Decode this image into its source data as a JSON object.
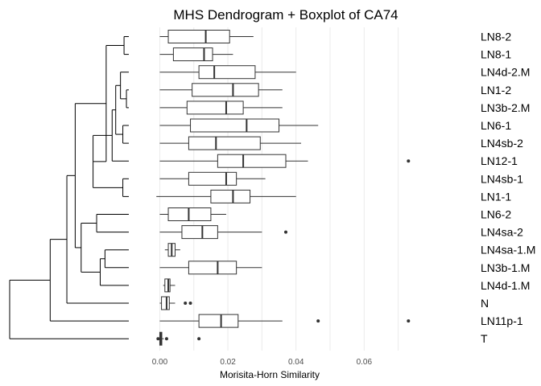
{
  "chart_data": {
    "type": "boxplot",
    "title": "MHS Dendrogram + Boxplot of CA74",
    "xlabel": "Morisita-Horn Similarity",
    "xlim": [
      -0.002,
      0.076
    ],
    "xticks": [
      0.0,
      0.02,
      0.04,
      0.06
    ],
    "xtick_labels": [
      "0.00",
      "0.02",
      "0.04",
      "0.06"
    ],
    "grid": true,
    "rows": [
      {
        "label": "LN8-2",
        "min": 0.0,
        "q1": 0.0025,
        "median": 0.0135,
        "q3": 0.0205,
        "max": 0.0275,
        "outliers": []
      },
      {
        "label": "LN8-1",
        "min": 0.0,
        "q1": 0.004,
        "median": 0.013,
        "q3": 0.0155,
        "max": 0.0215,
        "outliers": []
      },
      {
        "label": "LN4d-2.M",
        "min": 0.0,
        "q1": 0.0115,
        "median": 0.016,
        "q3": 0.028,
        "max": 0.04,
        "outliers": []
      },
      {
        "label": "LN1-2",
        "min": 0.0,
        "q1": 0.0095,
        "median": 0.0215,
        "q3": 0.029,
        "max": 0.036,
        "outliers": []
      },
      {
        "label": "LN3b-2.M",
        "min": 0.0,
        "q1": 0.008,
        "median": 0.0195,
        "q3": 0.0245,
        "max": 0.036,
        "outliers": []
      },
      {
        "label": "LN6-1",
        "min": 0.0,
        "q1": 0.009,
        "median": 0.0255,
        "q3": 0.035,
        "max": 0.0465,
        "outliers": []
      },
      {
        "label": "LN4sb-2",
        "min": 0.0,
        "q1": 0.0085,
        "median": 0.0165,
        "q3": 0.0295,
        "max": 0.0415,
        "outliers": []
      },
      {
        "label": "LN12-1",
        "min": 0.0,
        "q1": 0.017,
        "median": 0.0245,
        "q3": 0.037,
        "max": 0.0435,
        "outliers": [
          0.073
        ]
      },
      {
        "label": "LN4sb-1",
        "min": 0.0,
        "q1": 0.0085,
        "median": 0.0195,
        "q3": 0.0225,
        "max": 0.031,
        "outliers": []
      },
      {
        "label": "LN1-1",
        "min": -0.001,
        "q1": 0.015,
        "median": 0.0215,
        "q3": 0.0265,
        "max": 0.04,
        "outliers": []
      },
      {
        "label": "LN6-2",
        "min": 0.0,
        "q1": 0.0025,
        "median": 0.0085,
        "q3": 0.015,
        "max": 0.0195,
        "outliers": []
      },
      {
        "label": "LN4sa-2",
        "min": 0.0,
        "q1": 0.0065,
        "median": 0.0125,
        "q3": 0.017,
        "max": 0.03,
        "outliers": [
          0.037
        ]
      },
      {
        "label": "LN4sa-1.M",
        "min": 0.0015,
        "q1": 0.0025,
        "median": 0.0035,
        "q3": 0.0045,
        "max": 0.006,
        "outliers": []
      },
      {
        "label": "LN3b-1.M",
        "min": 0.0,
        "q1": 0.0085,
        "median": 0.017,
        "q3": 0.0225,
        "max": 0.03,
        "outliers": []
      },
      {
        "label": "LN4d-1.M",
        "min": 0.001,
        "q1": 0.0015,
        "median": 0.0025,
        "q3": 0.003,
        "max": 0.0045,
        "outliers": []
      },
      {
        "label": "N",
        "min": 0.0,
        "q1": 0.0005,
        "median": 0.002,
        "q3": 0.0028,
        "max": 0.0045,
        "outliers": [
          0.0075,
          0.009
        ]
      },
      {
        "label": "LN11p-1",
        "min": 0.0,
        "q1": 0.0115,
        "median": 0.018,
        "q3": 0.023,
        "max": 0.036,
        "outliers": [
          0.0465,
          0.073
        ]
      },
      {
        "label": "T",
        "min": -0.0005,
        "q1": 0.0,
        "median": 0.0003,
        "q3": 0.0006,
        "max": 0.0012,
        "outliers": [
          -0.0005,
          0.002,
          0.0115
        ]
      }
    ],
    "dendrogram": {
      "leaves": 18,
      "merges": [
        {
          "a": "leaf:0",
          "b": "leaf:1",
          "height": 0.04
        },
        {
          "a": "leaf:3",
          "b": "leaf:4",
          "height": 0.02
        },
        {
          "a": "leaf:2",
          "b": "node:1",
          "height": 0.07
        },
        {
          "a": "leaf:5",
          "b": "leaf:6",
          "height": 0.05
        },
        {
          "a": "node:2",
          "b": "node:3",
          "height": 0.11
        },
        {
          "a": "node:4",
          "b": "leaf:7",
          "height": 0.14
        },
        {
          "a": "leaf:8",
          "b": "leaf:9",
          "height": 0.05
        },
        {
          "a": "node:5",
          "b": "node:6",
          "height": 0.3
        },
        {
          "a": "node:0",
          "b": "node:7",
          "height": 0.19
        },
        {
          "a": "leaf:10",
          "b": "leaf:11",
          "height": 0.27
        },
        {
          "a": "leaf:12",
          "b": "leaf:13",
          "height": 0.2
        },
        {
          "a": "node:10",
          "b": "leaf:14",
          "height": 0.24
        },
        {
          "a": "node:9",
          "b": "node:11",
          "height": 0.4
        },
        {
          "a": "node:8",
          "b": "node:12",
          "height": 0.45
        },
        {
          "a": "node:13",
          "b": "leaf:15",
          "height": 0.52
        },
        {
          "a": "node:14",
          "b": "leaf:16",
          "height": 0.66
        },
        {
          "a": "node:15",
          "b": "leaf:17",
          "height": 1.0
        }
      ]
    }
  }
}
